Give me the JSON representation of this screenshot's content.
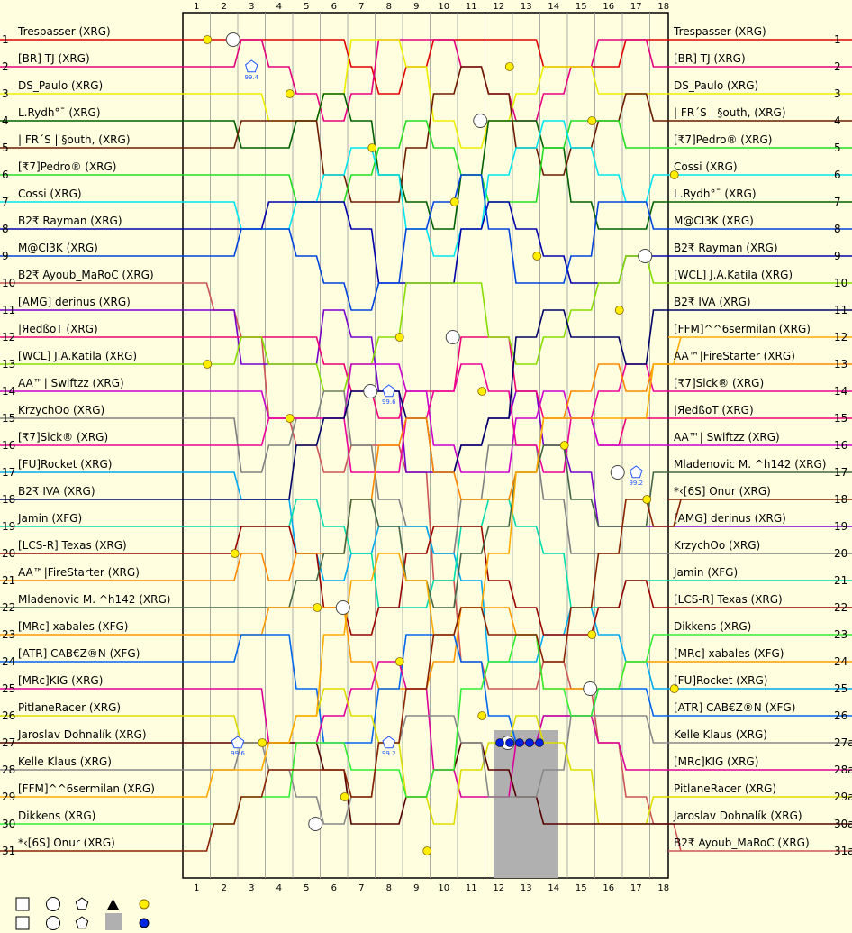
{
  "chart_data": {
    "type": "line",
    "title": "",
    "xlabel": "",
    "ylabel": "",
    "laps": [
      1,
      2,
      3,
      4,
      5,
      6,
      7,
      8,
      9,
      10,
      11,
      12,
      13,
      14,
      15,
      16,
      17,
      18
    ],
    "positions": [
      1,
      2,
      3,
      4,
      5,
      6,
      7,
      8,
      9,
      10,
      11,
      12,
      13,
      14,
      15,
      16,
      17,
      18,
      19,
      20,
      21,
      22,
      23,
      24,
      25,
      26,
      27,
      28,
      29,
      30,
      31
    ],
    "right_position_labels": [
      "1",
      "2",
      "3",
      "4",
      "5",
      "6",
      "7",
      "8",
      "9",
      "10",
      "11",
      "12",
      "13",
      "14",
      "15",
      "16",
      "17",
      "18",
      "19",
      "20",
      "21",
      "22",
      "23",
      "24",
      "25",
      "26",
      "27a",
      "28a",
      "29a",
      "30a",
      "31a"
    ],
    "grid_order": [
      "Trespasser (XRG)",
      "[BR] TJ (XRG)",
      "DS_Paulo (XRG)",
      "L.Rydh°¯ (XRG)",
      "| FR´S | §outh, (XRG)",
      "[₹7]Pedro® (XRG)",
      "Cossi (XRG)",
      "B2₹ Rayman (XRG)",
      "M@CI3K (XRG)",
      "B2₹ Ayoub_MaRoC (XRG)",
      "[AMG] derinus (XRG)",
      "|ЯedßoT (XRG)",
      "[WCL] J.A.Katila (XRG)",
      "AA™| Swiftzz (XRG)",
      "KrzychOo (XRG)",
      "[₹7]Sick® (XRG)",
      "[FU]Rocket (XRG)",
      "B2₹ IVA (XRG)",
      "Jamin (XFG)",
      "[LCS-R] Texas (XRG)",
      "AA™|FireStarter (XRG)",
      "Mladenovic M. ^h142 (XRG)",
      "[MRc] xabales (XFG)",
      "[ATR] CAB€Z®N (XFG)",
      "[MRc]KIG (XRG)",
      "PitlaneRacer (XRG)",
      "Jaroslav Dohnalík (XRG)",
      "Kelle Klaus (XRG)",
      "[FFM]^^6sermilan (XRG)",
      "Dikkens (XRG)",
      "*‹[6S] Onur (XRG)"
    ],
    "finish_order": [
      "Trespasser (XRG)",
      "[BR] TJ (XRG)",
      "DS_Paulo (XRG)",
      "| FR´S | §outh, (XRG)",
      "[₹7]Pedro® (XRG)",
      "Cossi (XRG)",
      "L.Rydh°¯ (XRG)",
      "M@CI3K (XRG)",
      "B2₹ Rayman (XRG)",
      "[WCL] J.A.Katila (XRG)",
      "B2₹ IVA (XRG)",
      "[FFM]^^6sermilan (XRG)",
      "AA™|FireStarter (XRG)",
      "[₹7]Sick® (XRG)",
      "|ЯedßoT (XRG)",
      "AA™| Swiftzz (XRG)",
      "Mladenovic M. ^h142 (XRG)",
      "*‹[6S] Onur (XRG)",
      "[AMG] derinus (XRG)",
      "KrzychOo (XRG)",
      "Jamin (XFG)",
      "[LCS-R] Texas (XRG)",
      "Dikkens (XRG)",
      "[MRc] xabales (XFG)",
      "[FU]Rocket (XRG)",
      "[ATR] CAB€Z®N (XFG)",
      "Kelle Klaus (XRG)",
      "[MRc]KIG (XRG)",
      "PitlaneRacer (XRG)",
      "Jaroslav Dohnalík (XRG)",
      "B2₹ Ayoub_MaRoC (XRG)"
    ],
    "colors": [
      "#e00000",
      "#e6007e",
      "#eeee00",
      "#006000",
      "#6b1c00",
      "#22dd22",
      "#00e5ee",
      "#0000aa",
      "#0044dd",
      "#cc5555",
      "#7700cc",
      "#ee0077",
      "#88dd00",
      "#cc00cc",
      "#808080",
      "#ee0099",
      "#00aaee",
      "#000066",
      "#00ddaa",
      "#990000",
      "#ff8800",
      "#446644",
      "#ff9900",
      "#0066ee",
      "#dd0099",
      "#dddd00",
      "#550000",
      "#888888",
      "#ffaa00",
      "#33ee33",
      "#882200"
    ],
    "annotations": [
      {
        "lap": 3,
        "pos": 2,
        "text": "99.4"
      },
      {
        "lap": 8,
        "pos": 14,
        "text": "99.6"
      },
      {
        "lap": 17,
        "pos": 17,
        "text": "99.2"
      },
      {
        "lap": 2.5,
        "pos": 27,
        "text": "99.6"
      },
      {
        "lap": 8,
        "pos": 27,
        "text": "99.2"
      }
    ],
    "legend": [
      {
        "symbol": "square"
      },
      {
        "symbol": "circle"
      },
      {
        "symbol": "pentagon"
      },
      {
        "symbol": "triangle"
      },
      {
        "symbol": "yellow-dot"
      },
      {
        "symbol": "grey-block"
      },
      {
        "symbol": "blue-dot"
      }
    ]
  }
}
